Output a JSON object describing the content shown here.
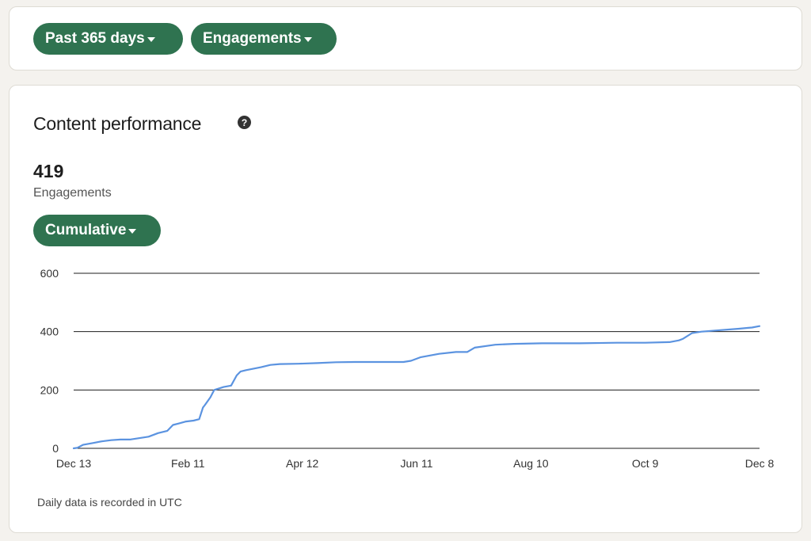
{
  "filters": {
    "range_label": "Past 365 days",
    "metric_label": "Engagements"
  },
  "performance": {
    "title": "Content performance",
    "help_icon": "?",
    "total_value": "419",
    "total_label": "Engagements",
    "mode_label": "Cumulative",
    "footnote": "Daily data is recorded in UTC"
  },
  "colors": {
    "pill_bg": "#2f7350",
    "line": "#5b93e0",
    "grid": "#1d1d1d"
  },
  "chart_data": {
    "type": "line",
    "title": "",
    "xlabel": "",
    "ylabel": "",
    "ylim": [
      0,
      600
    ],
    "yticks": [
      0,
      200,
      400,
      600
    ],
    "x_tick_labels": [
      "Dec 13",
      "Feb 11",
      "Apr 12",
      "Jun 11",
      "Aug 10",
      "Oct 9",
      "Dec 8"
    ],
    "grid": "horizontal",
    "x_days": [
      0,
      2,
      5,
      10,
      15,
      20,
      25,
      30,
      40,
      45,
      50,
      53,
      56,
      60,
      64,
      67,
      69,
      70,
      73,
      75,
      78,
      80,
      84,
      87,
      89,
      92,
      100,
      105,
      110,
      120,
      130,
      140,
      150,
      170,
      176,
      180,
      185,
      195,
      204,
      210,
      214,
      225,
      235,
      250,
      270,
      290,
      305,
      318,
      323,
      325,
      330,
      335,
      345,
      355,
      360,
      362,
      366
    ],
    "values": [
      0,
      2,
      12,
      18,
      24,
      28,
      30,
      30,
      40,
      52,
      60,
      80,
      85,
      92,
      95,
      100,
      140,
      148,
      175,
      200,
      206,
      210,
      215,
      250,
      263,
      268,
      278,
      286,
      289,
      290,
      292,
      295,
      296,
      296,
      296,
      300,
      312,
      324,
      330,
      330,
      345,
      355,
      358,
      360,
      360,
      362,
      362,
      364,
      370,
      375,
      395,
      400,
      405,
      410,
      413,
      414,
      419
    ]
  }
}
